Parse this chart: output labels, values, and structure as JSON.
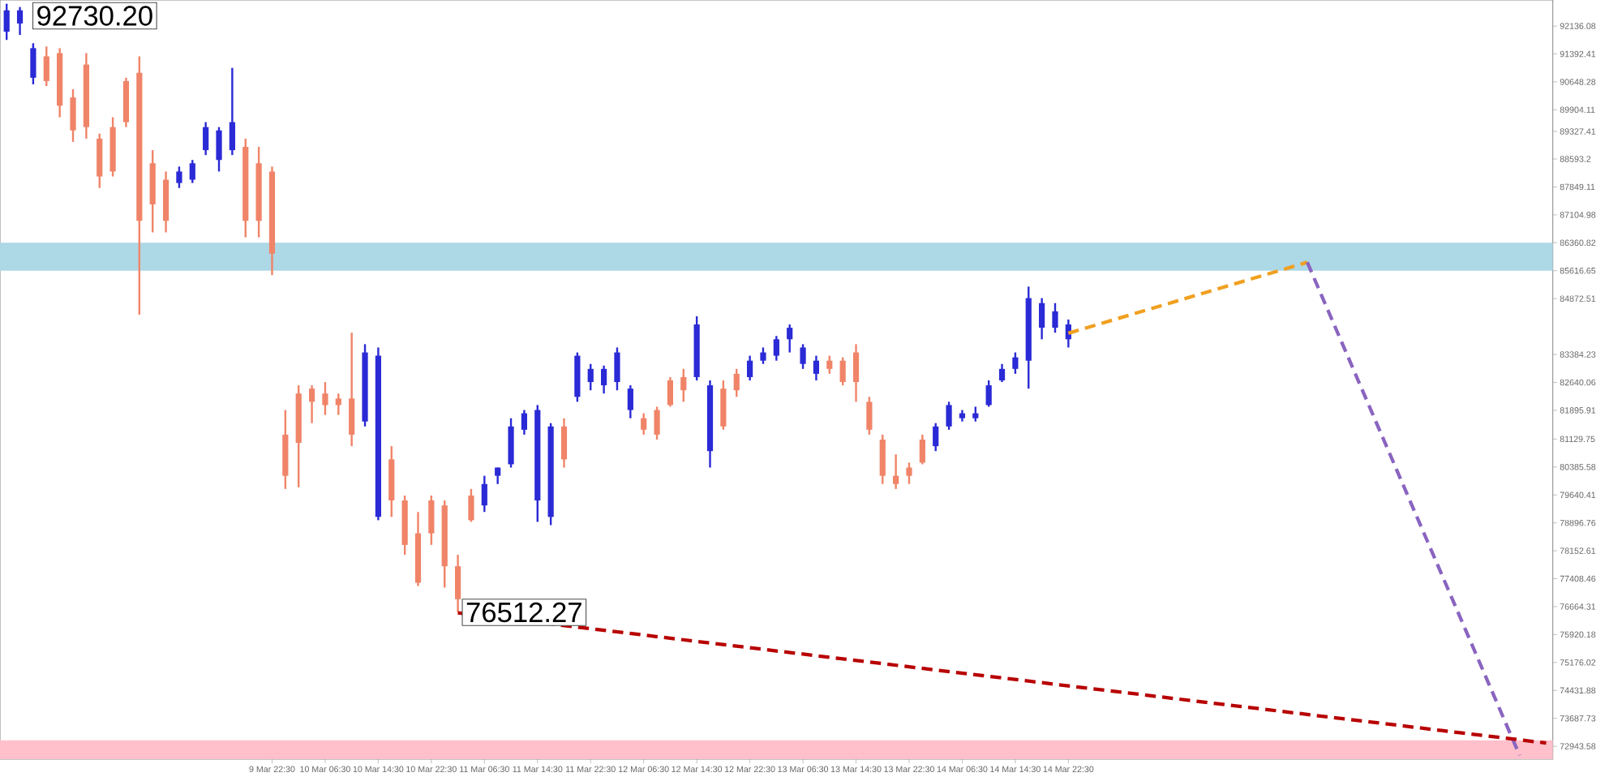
{
  "chart_data": {
    "type": "candlestick",
    "categories": [
      null,
      null,
      null,
      null,
      null,
      null,
      null,
      null,
      null,
      null,
      null,
      null,
      null,
      null,
      null,
      null,
      null,
      null,
      null,
      null,
      "9 Mar 22:30",
      null,
      null,
      null,
      "10 Mar 06:30",
      null,
      null,
      null,
      "10 Mar 14:30",
      null,
      null,
      null,
      "10 Mar 22:30",
      null,
      null,
      null,
      "11 Mar 06:30",
      null,
      null,
      null,
      "11 Mar 14:30",
      null,
      null,
      null,
      "11 Mar 22:30",
      null,
      null,
      null,
      "12 Mar 06:30",
      null,
      null,
      null,
      "12 Mar 14:30",
      null,
      null,
      null,
      "12 Mar 22:30",
      null,
      null,
      null,
      "13 Mar 06:30",
      null,
      null,
      null,
      "13 Mar 14:30",
      null,
      null,
      null,
      "13 Mar 22:30",
      null,
      null,
      null,
      "14 Mar 06:30",
      null,
      null,
      null,
      "14 Mar 14:30",
      null,
      null,
      null,
      "14 Mar 22:30",
      null,
      null,
      null,
      null,
      null,
      null,
      null,
      null,
      null,
      null,
      null,
      null,
      null,
      null,
      null,
      null,
      null,
      null,
      null,
      null,
      null,
      null,
      null,
      null,
      null,
      null,
      null,
      null,
      null,
      null,
      null,
      null,
      null,
      null,
      null,
      null
    ],
    "ohlc": [
      [
        91985,
        92730.2,
        91766,
        92555
      ],
      [
        92204,
        92643,
        91898,
        92555
      ],
      [
        90758,
        91678,
        90583,
        91547
      ],
      [
        91328,
        91591,
        90539,
        90670
      ],
      [
        91415,
        91547,
        89706,
        90013
      ],
      [
        90232,
        90451,
        89049,
        89355
      ],
      [
        91109,
        91415,
        89136,
        89443
      ],
      [
        89136,
        89268,
        87821,
        88128
      ],
      [
        89443,
        89706,
        88128,
        88260
      ],
      [
        90670,
        90758,
        89443,
        89575
      ],
      [
        90889,
        91328,
        84446,
        86945
      ],
      [
        88479,
        88829,
        86638,
        87383
      ],
      [
        88041,
        88260,
        86638,
        86945
      ],
      [
        87953,
        88391,
        87821,
        88260
      ],
      [
        88041,
        88567,
        87953,
        88479
      ],
      [
        88829,
        89575,
        88698,
        89443
      ],
      [
        88567,
        89443,
        88260,
        89355
      ],
      [
        88829,
        91021,
        88698,
        89575
      ],
      [
        88917,
        89136,
        86506,
        86945
      ],
      [
        88479,
        88917,
        86506,
        86945
      ],
      [
        88260,
        88391,
        85498,
        86068
      ],
      [
        81247,
        81904,
        79801,
        80151
      ],
      [
        82343,
        82562,
        79844,
        81028
      ],
      [
        82474,
        82562,
        81554,
        82123
      ],
      [
        82343,
        82649,
        81773,
        82036
      ],
      [
        82211,
        82343,
        81773,
        82036
      ],
      [
        82211,
        83964,
        80940,
        81247
      ],
      [
        81598,
        83658,
        81466,
        83438
      ],
      [
        79055,
        83570,
        78968,
        83351
      ],
      [
        80589,
        80940,
        79055,
        79494
      ],
      [
        79494,
        79625,
        78047,
        78310
      ],
      [
        78617,
        79187,
        77215,
        77302
      ],
      [
        79494,
        79625,
        78310,
        78617
      ],
      [
        79362,
        79494,
        77171,
        77740
      ],
      [
        77740,
        78047,
        76512.27,
        76864
      ],
      [
        79625,
        79801,
        78924,
        78968
      ],
      [
        79362,
        80151,
        79187,
        79932
      ],
      [
        80151,
        80370,
        79932,
        80370
      ],
      [
        80458,
        81685,
        80370,
        81466
      ],
      [
        81378,
        81904,
        81247,
        81817
      ],
      [
        79494,
        82036,
        78924,
        81904
      ],
      [
        79055,
        81554,
        78836,
        81466
      ],
      [
        81466,
        81685,
        80370,
        80589
      ],
      [
        82255,
        83438,
        82123,
        83351
      ],
      [
        82649,
        83132,
        82430,
        83000
      ],
      [
        82562,
        83088,
        82343,
        83000
      ],
      [
        82649,
        83570,
        82430,
        83438
      ],
      [
        81904,
        82562,
        81685,
        82474
      ],
      [
        81685,
        81817,
        81247,
        81378
      ],
      [
        81904,
        81992,
        81115,
        81247
      ],
      [
        82693,
        82781,
        81992,
        82036
      ],
      [
        82781,
        83000,
        82123,
        82430
      ],
      [
        82781,
        84403,
        82693,
        84184
      ],
      [
        80809,
        82693,
        80370,
        82562
      ],
      [
        82474,
        82693,
        81378,
        81466
      ],
      [
        82869,
        83000,
        82255,
        82430
      ],
      [
        82781,
        83351,
        82693,
        83219
      ],
      [
        83219,
        83570,
        83132,
        83438
      ],
      [
        83351,
        83877,
        83219,
        83789
      ],
      [
        83789,
        84184,
        83438,
        84096
      ],
      [
        83132,
        83658,
        83000,
        83570
      ],
      [
        82869,
        83351,
        82693,
        83219
      ],
      [
        83219,
        83351,
        82869,
        83000
      ],
      [
        83219,
        83307,
        82562,
        82649
      ],
      [
        83438,
        83658,
        82123,
        82649
      ],
      [
        82123,
        82255,
        81247,
        81378
      ],
      [
        81115,
        81247,
        79932,
        80151
      ],
      [
        80151,
        80721,
        79801,
        79932
      ],
      [
        80370,
        80502,
        79932,
        80151
      ],
      [
        81115,
        81247,
        80458,
        80502
      ],
      [
        80940,
        81554,
        80809,
        81466
      ],
      [
        81466,
        82123,
        81378,
        82036
      ],
      [
        81685,
        81904,
        81598,
        81817
      ],
      [
        81685,
        81992,
        81598,
        81817
      ],
      [
        82036,
        82693,
        81992,
        82562
      ],
      [
        82693,
        83132,
        82649,
        83000
      ],
      [
        83000,
        83438,
        82869,
        83307
      ],
      [
        83219,
        85192,
        82474,
        84885
      ],
      [
        84096,
        84885,
        83789,
        84753
      ],
      [
        84096,
        84753,
        83964,
        84534
      ],
      [
        83789,
        84315,
        83570,
        84184
      ],
      null,
      null,
      null,
      null,
      null,
      null,
      null,
      null,
      null,
      null,
      null,
      null,
      null,
      null,
      null,
      null,
      null,
      null,
      null,
      null,
      null,
      null,
      null,
      null,
      null,
      null,
      null,
      null,
      null,
      null,
      null,
      null,
      null,
      null,
      null,
      null
    ],
    "colors": [
      "#2a2ad6",
      "#2a2ad6",
      "#2a2ad6",
      "#f08468",
      "#f08468",
      "#f08468",
      "#f08468",
      "#f08468",
      "#f08468",
      "#f08468",
      "#f08468",
      "#f08468",
      "#f08468",
      "#2a2ad6",
      "#2a2ad6",
      "#2a2ad6",
      "#2a2ad6",
      "#2a2ad6",
      "#f08468",
      "#f08468",
      "#f08468",
      "#f08468",
      "#f08468",
      "#f08468",
      "#f08468",
      "#f08468",
      "#f08468",
      "#2a2ad6",
      "#2a2ad6",
      "#f08468",
      "#f08468",
      "#f08468",
      "#f08468",
      "#f08468",
      "#f08468",
      "#f08468",
      "#2a2ad6",
      "#2a2ad6",
      "#2a2ad6",
      "#2a2ad6",
      "#2a2ad6",
      "#2a2ad6",
      "#f08468",
      "#2a2ad6",
      "#2a2ad6",
      "#2a2ad6",
      "#2a2ad6",
      "#2a2ad6",
      "#f08468",
      "#f08468",
      "#f08468",
      "#f08468",
      "#2a2ad6",
      "#2a2ad6",
      "#f08468",
      "#f08468",
      "#2a2ad6",
      "#2a2ad6",
      "#2a2ad6",
      "#2a2ad6",
      "#2a2ad6",
      "#2a2ad6",
      "#f08468",
      "#f08468",
      "#f08468",
      "#f08468",
      "#f08468",
      "#f08468",
      "#f08468",
      "#f08468",
      "#2a2ad6",
      "#2a2ad6",
      "#2a2ad6",
      "#2a2ad6",
      "#2a2ad6",
      "#2a2ad6",
      "#2a2ad6",
      "#2a2ad6",
      "#2a2ad6",
      "#2a2ad6",
      "#2a2ad6",
      null,
      null,
      null,
      null,
      null,
      null,
      null,
      null,
      null,
      null,
      null,
      null,
      null,
      null,
      null,
      null,
      null,
      null,
      null,
      null,
      null,
      null,
      null,
      null,
      null,
      null,
      null,
      null,
      null,
      null,
      null,
      null,
      null,
      null,
      null,
      null
    ],
    "series": [
      {
        "type": "line",
        "values": [
          null,
          null,
          null,
          null,
          null,
          null,
          null,
          null,
          null,
          null,
          null,
          null,
          null,
          null,
          null,
          null,
          null,
          null,
          null,
          null,
          null,
          null,
          null,
          null,
          null,
          null,
          null,
          null,
          null,
          null,
          null,
          null,
          null,
          null,
          null,
          null,
          null,
          null,
          null,
          null,
          null,
          null,
          null,
          null,
          null,
          null,
          null,
          null,
          null,
          null,
          null,
          null,
          null,
          null,
          null,
          null,
          null,
          null,
          null,
          null,
          null,
          null,
          null,
          null,
          null,
          null,
          null,
          null,
          null,
          null,
          null,
          null,
          null,
          null,
          null,
          null,
          null,
          null,
          null,
          null,
          83950,
          null,
          null,
          null,
          null,
          null,
          null,
          null,
          null,
          null,
          null,
          null,
          null,
          null,
          null,
          null,
          null,
          null,
          85840,
          null,
          null,
          null,
          null,
          null,
          null,
          null,
          null,
          null,
          null,
          null,
          null,
          null,
          null,
          null,
          null,
          null,
          null
        ],
        "color": "#f0a020",
        "line_style": "dashed"
      },
      {
        "type": "line",
        "values": [
          null,
          null,
          null,
          null,
          null,
          null,
          null,
          null,
          null,
          null,
          null,
          null,
          null,
          null,
          null,
          null,
          null,
          null,
          null,
          null,
          null,
          null,
          null,
          null,
          null,
          null,
          null,
          null,
          null,
          null,
          null,
          null,
          null,
          null,
          null,
          null,
          null,
          null,
          null,
          null,
          null,
          null,
          null,
          null,
          null,
          null,
          null,
          null,
          null,
          null,
          null,
          null,
          null,
          null,
          null,
          null,
          null,
          null,
          null,
          null,
          null,
          null,
          null,
          null,
          null,
          null,
          null,
          null,
          null,
          null,
          null,
          null,
          null,
          null,
          null,
          null,
          null,
          null,
          null,
          null,
          null,
          null,
          null,
          null,
          null,
          null,
          null,
          null,
          null,
          null,
          null,
          null,
          null,
          null,
          null,
          null,
          null,
          null,
          85840,
          null,
          null,
          null,
          null,
          null,
          null,
          null,
          null,
          null,
          null,
          null,
          null,
          null,
          null,
          null,
          72700,
          null,
          null
        ],
        "color": "#8a64c0",
        "line_style": "dashed"
      },
      {
        "type": "line",
        "values": [
          null,
          null,
          null,
          null,
          null,
          null,
          null,
          null,
          null,
          null,
          null,
          null,
          null,
          null,
          null,
          null,
          null,
          null,
          null,
          null,
          null,
          null,
          null,
          null,
          null,
          null,
          null,
          null,
          null,
          null,
          null,
          null,
          null,
          null,
          76500,
          null,
          null,
          null,
          null,
          null,
          null,
          null,
          null,
          null,
          null,
          null,
          null,
          null,
          null,
          null,
          null,
          null,
          null,
          null,
          null,
          null,
          null,
          null,
          null,
          null,
          null,
          null,
          null,
          null,
          null,
          null,
          null,
          null,
          null,
          null,
          null,
          null,
          null,
          null,
          null,
          null,
          null,
          null,
          null,
          null,
          null,
          null,
          null,
          null,
          null,
          null,
          null,
          null,
          null,
          null,
          null,
          null,
          null,
          null,
          null,
          null,
          null,
          null,
          null,
          null,
          null,
          null,
          null,
          null,
          null,
          null,
          null,
          null,
          null,
          null,
          null,
          null,
          null,
          null,
          null,
          null,
          73030
        ],
        "color": "#b80000",
        "line_style": "dashed"
      }
    ],
    "bands": [
      {
        "axis": "y",
        "from": 85616.65,
        "to": 86360.82,
        "color": "#add8e6"
      },
      {
        "axis": "y",
        "from": 72600,
        "to": 73100,
        "color": "#ffc0cb"
      }
    ],
    "annotations": [
      "92730.20",
      {
        "text": "76512.27",
        "y": 76512.27
      }
    ],
    "ylim": [
      72600,
      92830
    ],
    "yticks": [
      92136.08,
      91392.41,
      90648.28,
      89904.11,
      89327.41,
      88593.2,
      87849.11,
      87104.98,
      86360.82,
      85616.65,
      84872.51,
      83384.23,
      82640.06,
      81895.91,
      81129.75,
      80385.58,
      79640.41,
      78896.76,
      78152.61,
      77408.46,
      76664.31,
      75920.18,
      75176.02,
      74431.88,
      73687.73,
      72943.58
    ]
  }
}
